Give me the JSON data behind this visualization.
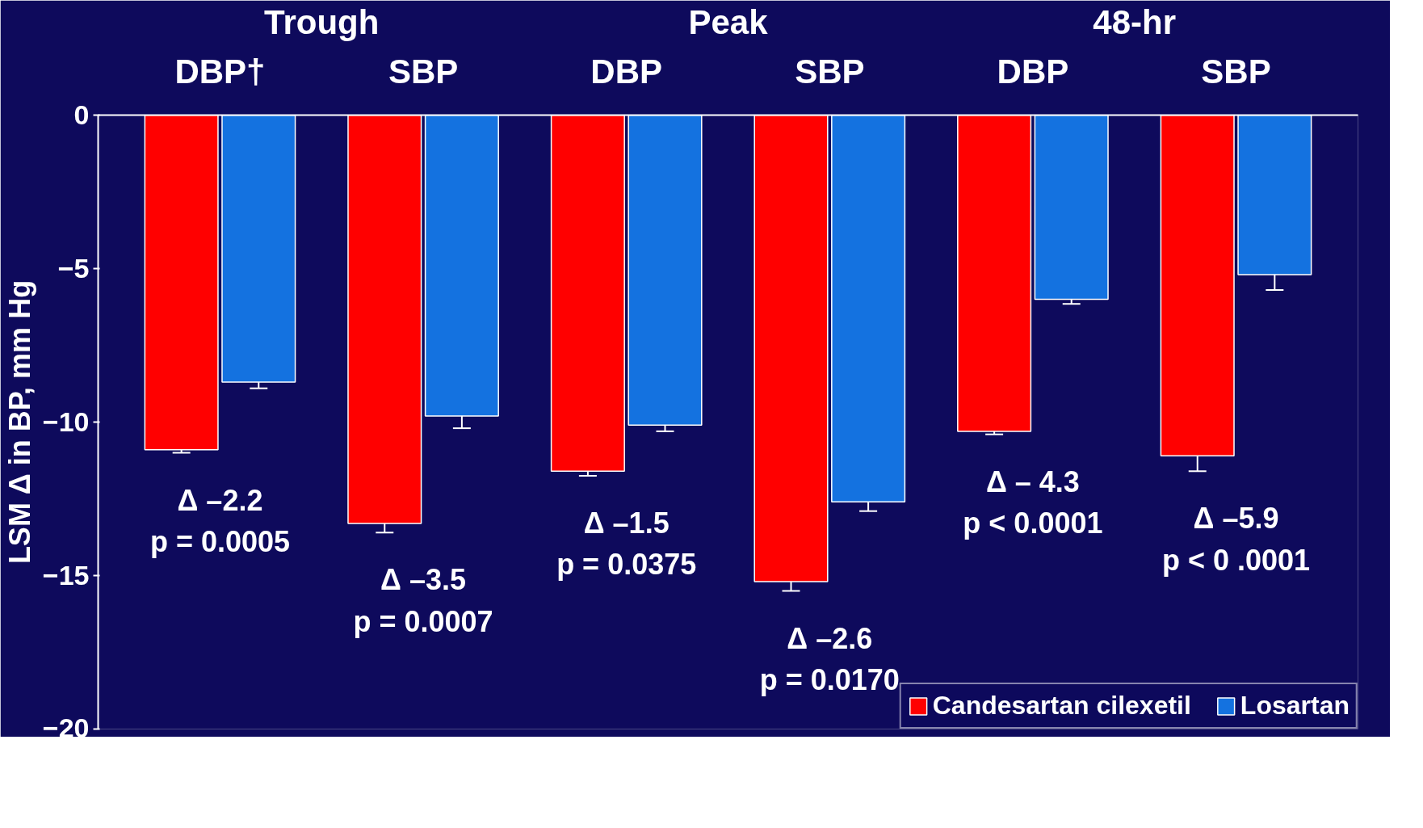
{
  "chart_data": {
    "type": "bar",
    "ylabel": "LSM Δ in BP, mm Hg",
    "categories": [
      "DBP†",
      "SBP",
      "DBP",
      "SBP",
      "DBP",
      "SBP"
    ],
    "series": [
      {
        "name": "Candesartan cilexetil",
        "color": "#ff0000",
        "values": [
          -10.9,
          -13.3,
          -11.6,
          -15.2,
          -10.3,
          -11.1
        ],
        "errors": [
          [
            -11.0,
            -10.9
          ],
          [
            -13.6,
            -13.3
          ],
          [
            -11.75,
            -11.6
          ],
          [
            -15.5,
            -15.2
          ],
          [
            -10.4,
            -10.3
          ],
          [
            -11.6,
            -11.1
          ]
        ]
      },
      {
        "name": "Losartan",
        "color": "#1472e0",
        "values": [
          -8.7,
          -9.8,
          -10.1,
          -12.6,
          -6.0,
          -5.2
        ],
        "errors": [
          [
            -8.9,
            -8.7
          ],
          [
            -10.2,
            -9.8
          ],
          [
            -10.3,
            -10.1
          ],
          [
            -12.9,
            -12.6
          ],
          [
            -6.15,
            -6.0
          ],
          [
            -5.7,
            -5.2
          ]
        ]
      }
    ],
    "annotations": [
      "Trough",
      "Peak",
      "48-hr",
      "Δ –2.2\np = 0.0005",
      "Δ –3.5\np = 0.0007",
      "Δ –1.5\np = 0.0375",
      "Δ –2.6\np = 0.0170",
      "Δ – 4.3\np < 0.0001",
      "Δ –5.9\np < 0 .0001"
    ],
    "ylim": [
      -20,
      0
    ],
    "yticks": [
      0,
      -5,
      -10,
      -15,
      -20
    ],
    "grid": false,
    "legend": "bottom right"
  }
}
